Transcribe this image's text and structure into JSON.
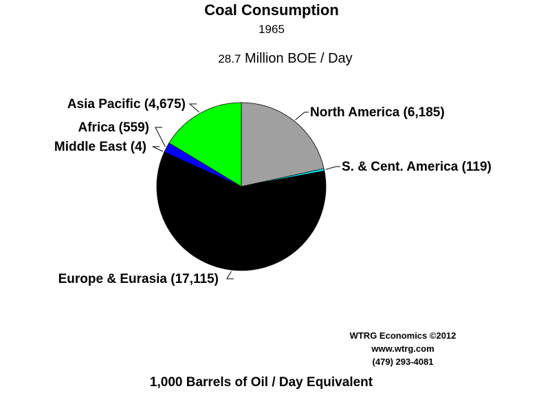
{
  "chart_data": {
    "type": "pie",
    "title": "Coal Consumption",
    "subtitle": "1965",
    "total": {
      "value": "28.7",
      "unit": "Million BOE / Day"
    },
    "xlabel": "1,000 Barrels of Oil / Day Equivalent",
    "slices": [
      {
        "name": "North America",
        "value": 6185,
        "label": "North America (6,185)",
        "color": "#a0a0a0"
      },
      {
        "name": "S. & Cent. America",
        "value": 119,
        "label": "S. & Cent. America (119)",
        "color": "#00ffff"
      },
      {
        "name": "Europe & Eurasia",
        "value": 17115,
        "label": "Europe & Eurasia (17,115)",
        "color": "#000000"
      },
      {
        "name": "Middle East",
        "value": 4,
        "label": "Middle East (4)",
        "color": "#ff00ff"
      },
      {
        "name": "Africa",
        "value": 559,
        "label": "Africa (559)",
        "color": "#0000ff"
      },
      {
        "name": "Asia Pacific",
        "value": 4675,
        "label": "Asia Pacific (4,675)",
        "color": "#00ff00"
      }
    ]
  },
  "credits": {
    "line1": "WTRG Economics  ©2012",
    "line2": "www.wtrg.com",
    "line3": "(479) 293-4081"
  }
}
